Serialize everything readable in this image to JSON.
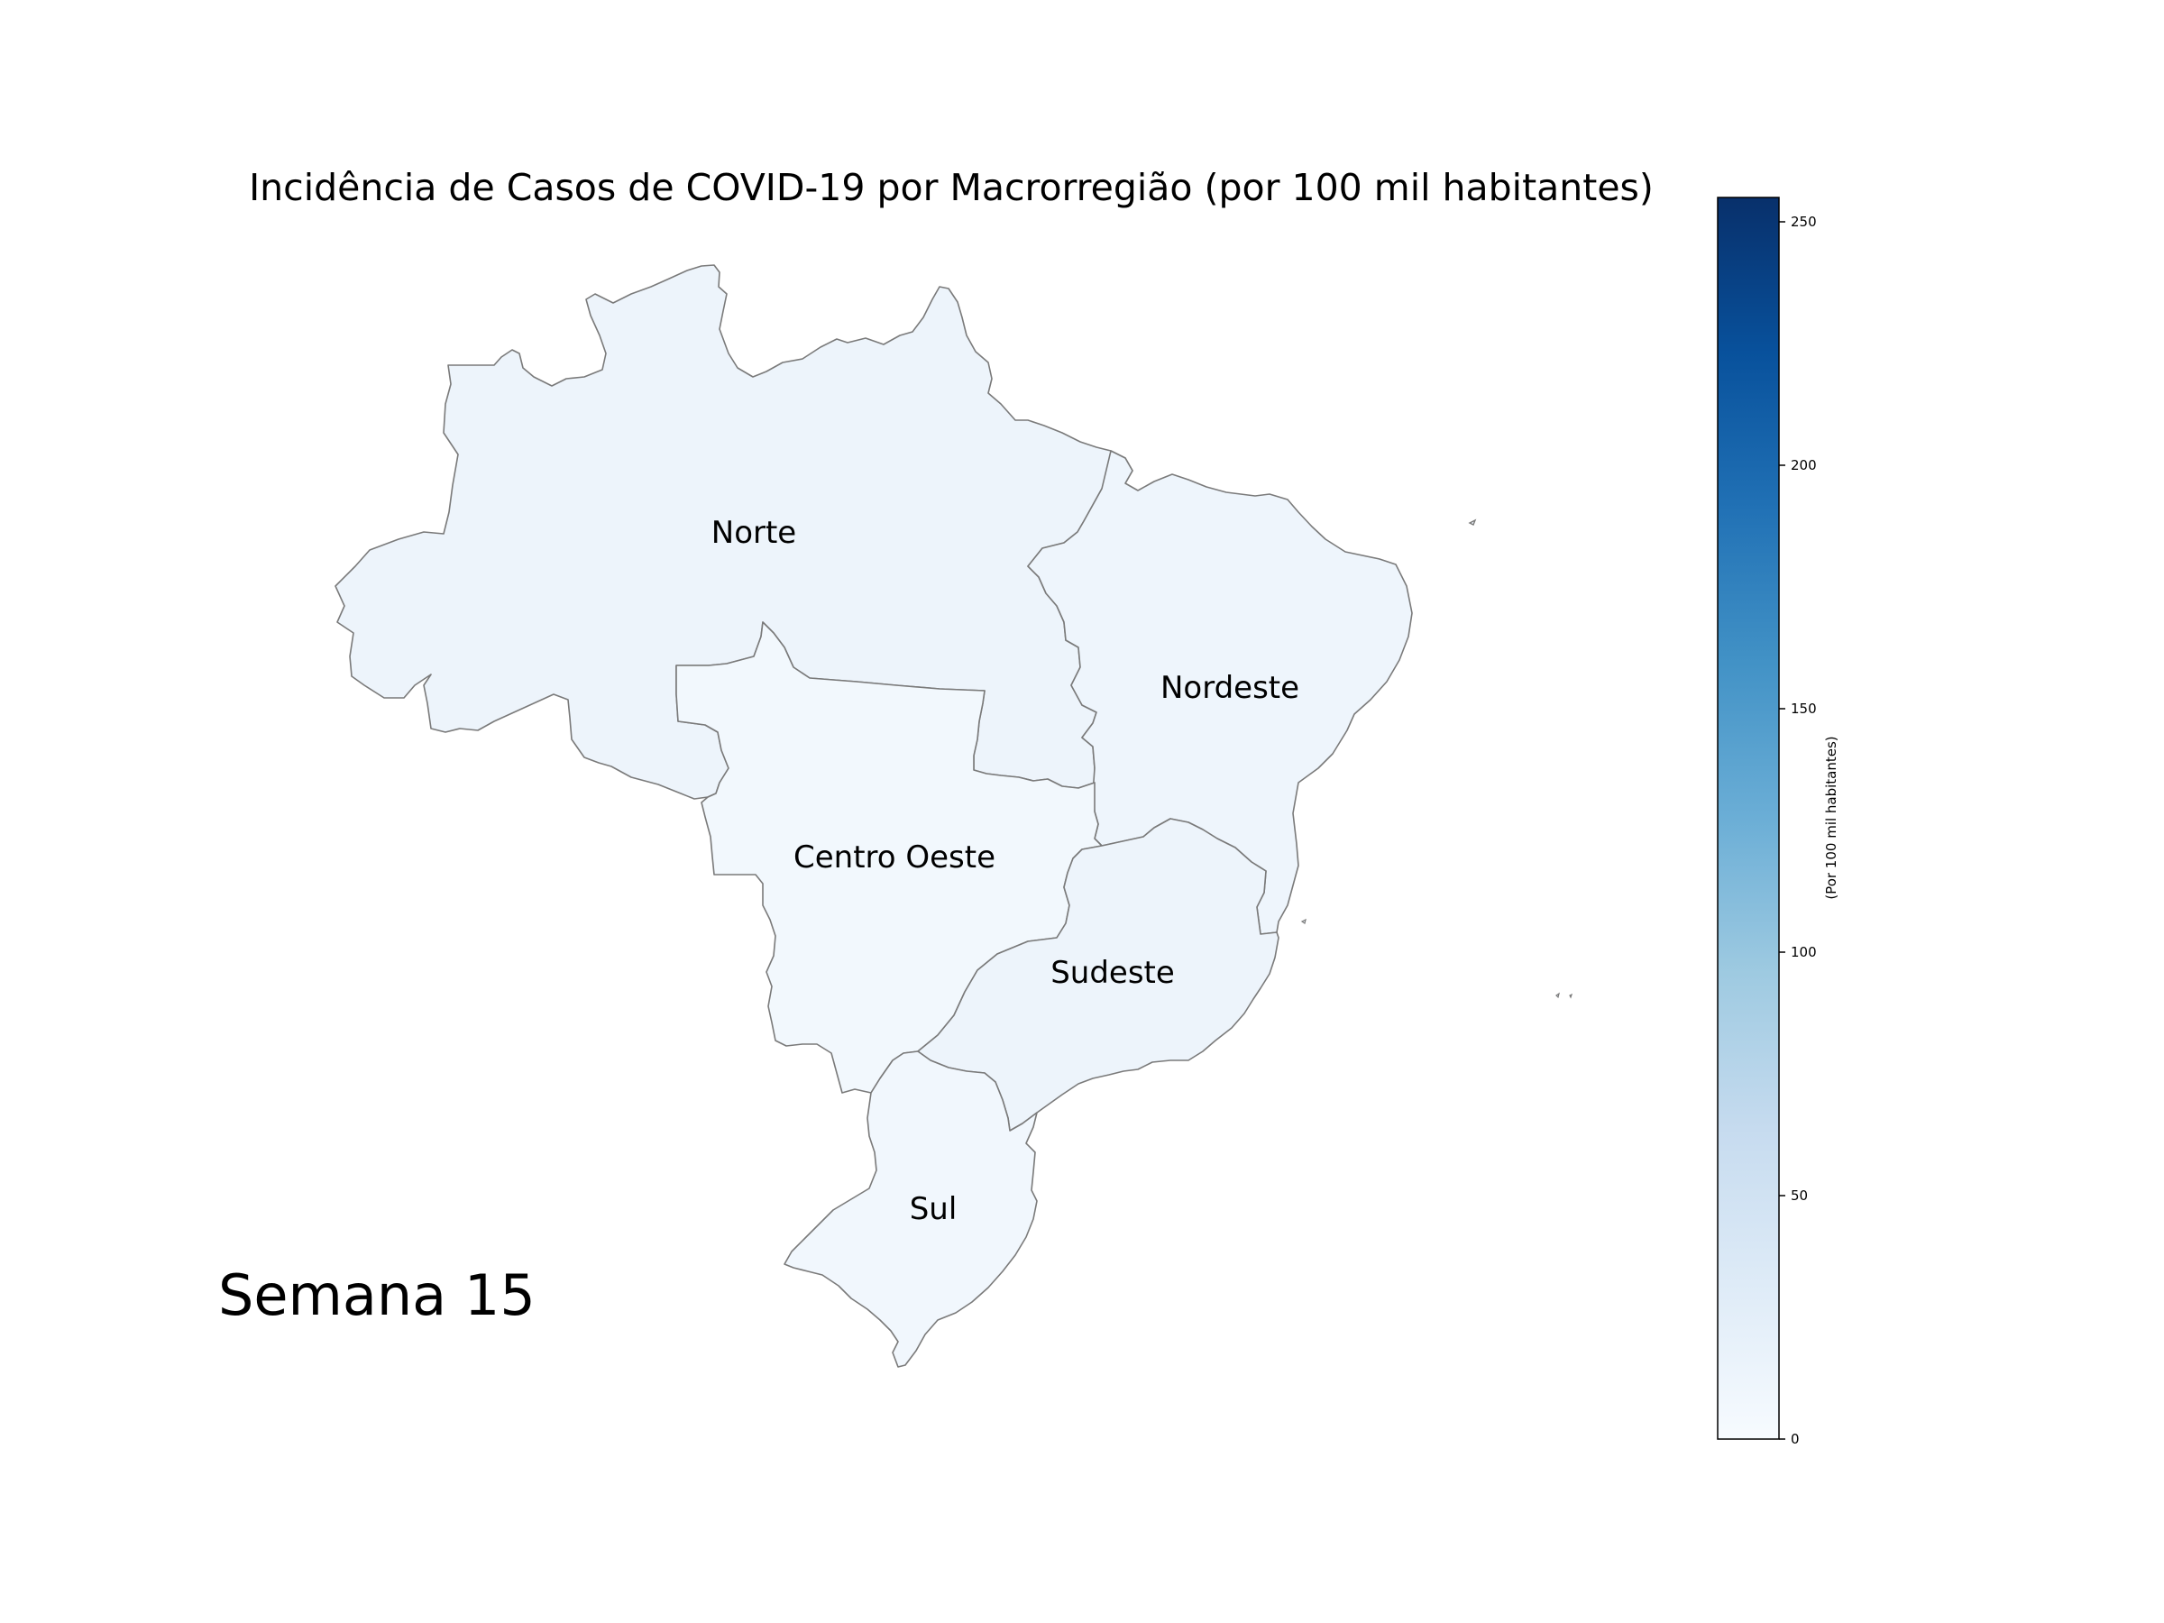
{
  "title": "Incidência de Casos de COVID-19 por Macrorregião (por 100 mil habitantes)",
  "week_label": "Semana 15",
  "colorbar": {
    "label": "(Por 100 mil habitantes)",
    "min": 0,
    "max": 255,
    "ticks": [
      "0",
      "50",
      "100",
      "150",
      "200",
      "250"
    ],
    "colormap": "Blues",
    "color_stops": [
      "#f7fbff",
      "#deebf7",
      "#c6dbef",
      "#9ecae1",
      "#6baed6",
      "#4292c6",
      "#2171b5",
      "#08519c",
      "#08306b"
    ]
  },
  "regions": [
    {
      "name": "Norte",
      "label": "Norte",
      "fill": "#edf4fb"
    },
    {
      "name": "Nordeste",
      "label": "Nordeste",
      "fill": "#eef5fc"
    },
    {
      "name": "Centro Oeste",
      "label": "Centro Oeste",
      "fill": "#f2f8fd"
    },
    {
      "name": "Sudeste",
      "label": "Sudeste",
      "fill": "#edf4fb"
    },
    {
      "name": "Sul",
      "label": "Sul",
      "fill": "#f1f7fd"
    }
  ]
}
